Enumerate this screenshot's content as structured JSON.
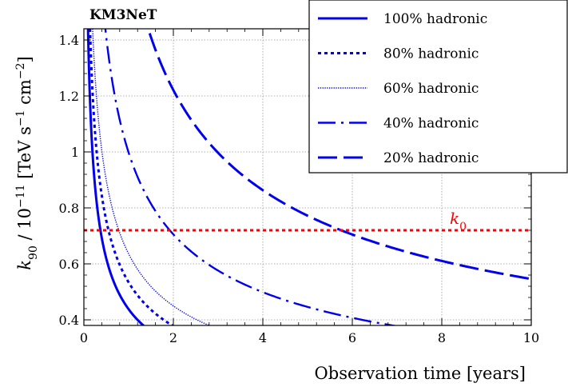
{
  "chart_data": {
    "type": "line",
    "brand_label": "KM3NeT",
    "xlabel": "Observation time [years]",
    "ylabel": "k90 / 10^-11 [TeV s^-1 cm^-2]",
    "ylabel_parts": {
      "k": "k",
      "sub": "90",
      "mid": " / 10",
      "exp": "−11",
      "unit1": " [TeV s",
      "exp1": "−1",
      "unit2": " cm",
      "exp2": "−2",
      "end": "]"
    },
    "xlim": [
      0,
      10
    ],
    "ylim": [
      0.38,
      1.44
    ],
    "xticks": [
      "0",
      "2",
      "4",
      "6",
      "8",
      "10"
    ],
    "yticks": [
      "0.4",
      "0.6",
      "0.8",
      "1",
      "1.2",
      "1.4"
    ],
    "grid": true,
    "legend_position": "top-right",
    "colors": {
      "series": "#0000ee",
      "reference": "#ff0000"
    },
    "reference_line": {
      "label_base": "k",
      "label_sub": "0",
      "y": 0.72
    },
    "series": [
      {
        "name": "100% hadronic",
        "style": "solid",
        "T0": 0.37,
        "k0y": 0.72
      },
      {
        "name": "80% hadronic",
        "style": "dotted",
        "T0": 0.55,
        "k0y": 0.72
      },
      {
        "name": "60% hadronic",
        "style": "fine-dotted",
        "T0": 0.78,
        "k0y": 0.72
      },
      {
        "name": "40% hadronic",
        "style": "dash-dot",
        "T0": 1.92,
        "k0y": 0.72
      },
      {
        "name": "20% hadronic",
        "style": "dashed",
        "T0": 5.75,
        "k0y": 0.72
      }
    ]
  }
}
